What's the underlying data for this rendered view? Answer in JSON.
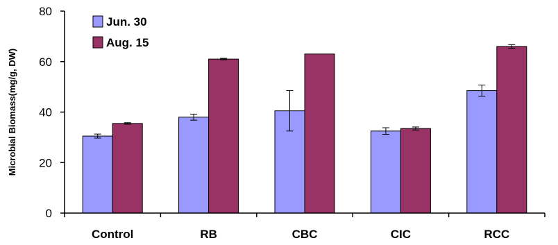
{
  "chart_data": {
    "type": "bar",
    "title": "",
    "xlabel": "",
    "ylabel": "Microbial Biomass(mg/g, DW)",
    "ylim": [
      0,
      80
    ],
    "yticks": [
      "0",
      "20",
      "40",
      "60",
      "80"
    ],
    "categories": [
      "Control",
      "RB",
      "CBC",
      "CIC",
      "RCC"
    ],
    "series": [
      {
        "name": "Jun. 30",
        "color": "#9999ff",
        "values": [
          30.5,
          38,
          40.5,
          32.5,
          48.5
        ],
        "errors": [
          0.8,
          1.2,
          8.0,
          1.3,
          2.2
        ]
      },
      {
        "name": "Aug. 15",
        "color": "#993366",
        "values": [
          35.5,
          61,
          63,
          33.5,
          66
        ],
        "errors": [
          0.3,
          0.3,
          0,
          0.6,
          0.7
        ]
      }
    ],
    "grid": false,
    "legend": "top-left"
  }
}
